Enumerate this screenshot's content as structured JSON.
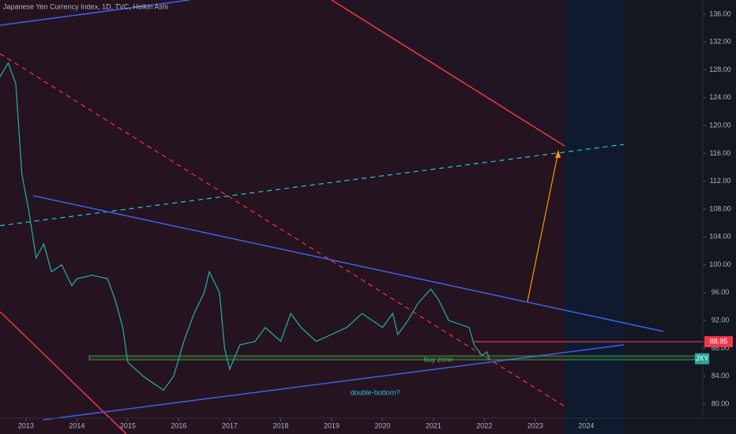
{
  "chart_data": {
    "type": "line",
    "title": "Japanese Yen Currency Index, 1D, TVC, Heikin Ashi",
    "x": [
      2012.49,
      2012.65,
      2012.8,
      2012.92,
      2013.05,
      2013.2,
      2013.35,
      2013.5,
      2013.7,
      2013.9,
      2014.0,
      2014.3,
      2014.6,
      2014.75,
      2014.9,
      2015.0,
      2015.3,
      2015.5,
      2015.7,
      2015.9,
      2016.1,
      2016.3,
      2016.5,
      2016.6,
      2016.8,
      2016.9,
      2017.0,
      2017.2,
      2017.5,
      2017.7,
      2018.0,
      2018.2,
      2018.4,
      2018.7,
      2019.0,
      2019.3,
      2019.6,
      2019.8,
      2020.0,
      2020.2,
      2020.3,
      2020.5,
      2020.7,
      2020.95,
      2021.1,
      2021.3,
      2021.5,
      2021.7,
      2021.8,
      2021.95,
      2022.05,
      2022.1
    ],
    "series": [
      {
        "name": "JXY",
        "color": "#26a69a",
        "values": [
          127,
          129,
          126,
          113,
          108,
          101,
          103,
          99,
          100,
          97,
          98,
          98.5,
          98,
          95,
          91,
          86,
          84,
          83,
          82,
          84,
          89,
          93,
          96,
          99,
          96,
          88,
          85,
          88.5,
          89,
          91,
          89,
          93,
          91,
          89,
          90,
          91,
          93,
          92,
          91,
          93,
          90,
          92,
          94.5,
          96.5,
          95,
          92,
          91.5,
          91,
          88.5,
          87,
          87.5,
          86.5
        ]
      }
    ],
    "last_price": {
      "value": 88.95,
      "label": "88.95"
    },
    "symbol_label": "JXY",
    "annotations": [
      "buy zone",
      "double-bottom?"
    ],
    "xlim": [
      2012.49,
      2026.29
    ],
    "xticks": [
      2013,
      2014,
      2015,
      2016,
      2017,
      2018,
      2019,
      2020,
      2021,
      2022,
      2023,
      2024
    ],
    "ylim": [
      80,
      136
    ],
    "yticks": [
      {
        "value": 80,
        "label": "80.00"
      },
      {
        "value": 84,
        "label": "84.00"
      },
      {
        "value": 88,
        "label": "88.00"
      },
      {
        "value": 92,
        "label": "92.00"
      },
      {
        "value": 96,
        "label": "96.00"
      },
      {
        "value": 100,
        "label": "100.00"
      },
      {
        "value": 104,
        "label": "104.00"
      },
      {
        "value": 108,
        "label": "108.00"
      },
      {
        "value": 112,
        "label": "112.00"
      },
      {
        "value": 116,
        "label": "116.00"
      },
      {
        "value": 120,
        "label": "120.00"
      },
      {
        "value": 124,
        "label": "124.00"
      },
      {
        "value": 128,
        "label": "128.00"
      },
      {
        "value": 132,
        "label": "132.00"
      },
      {
        "value": 136,
        "label": "136.00"
      }
    ]
  }
}
